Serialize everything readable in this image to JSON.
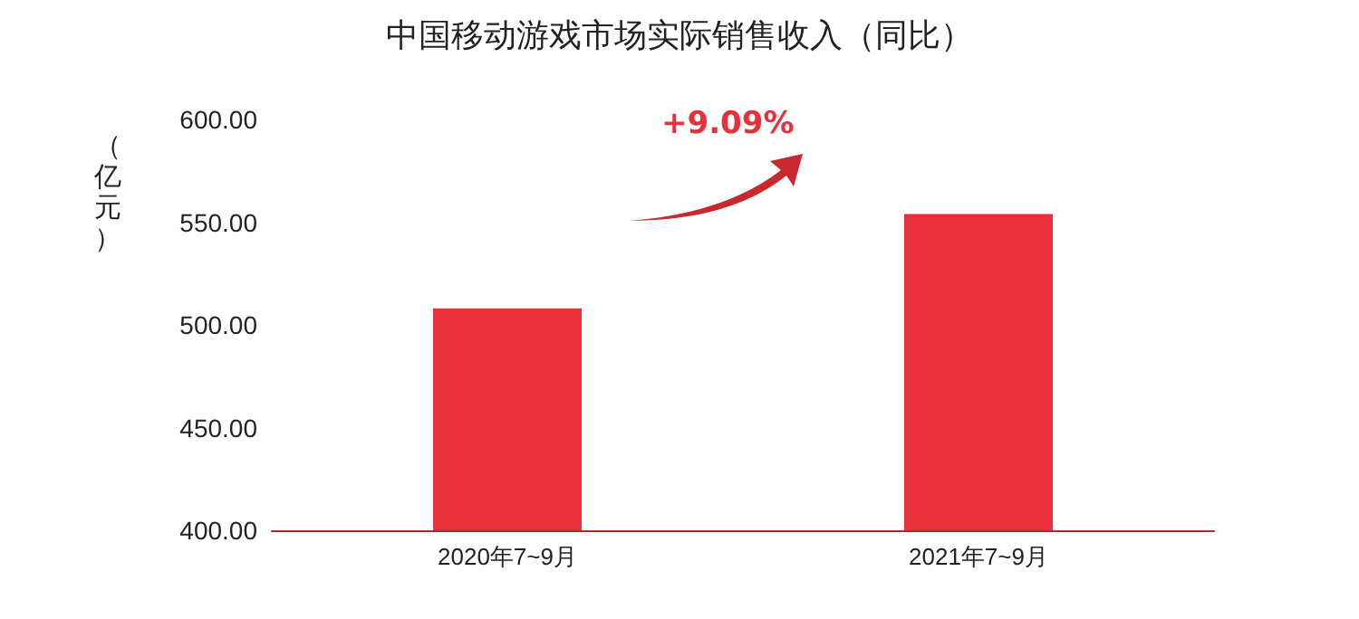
{
  "chart_data": {
    "type": "bar",
    "title": "中国移动游戏市场实际销售收入（同比）",
    "ylabel": "（亿元）",
    "categories": [
      "2020年7~9月",
      "2021年7~9月"
    ],
    "values": [
      508,
      554
    ],
    "color": "#e8303a",
    "ylim": [
      400,
      600
    ],
    "yticks": [
      {
        "value": 400,
        "label": "400.00"
      },
      {
        "value": 450,
        "label": "450.00"
      },
      {
        "value": 500,
        "label": "500.00"
      },
      {
        "value": 550,
        "label": "550.00"
      },
      {
        "value": 600,
        "label": "600.00"
      }
    ],
    "grid": false,
    "annotations": [
      "+9.09%"
    ]
  }
}
